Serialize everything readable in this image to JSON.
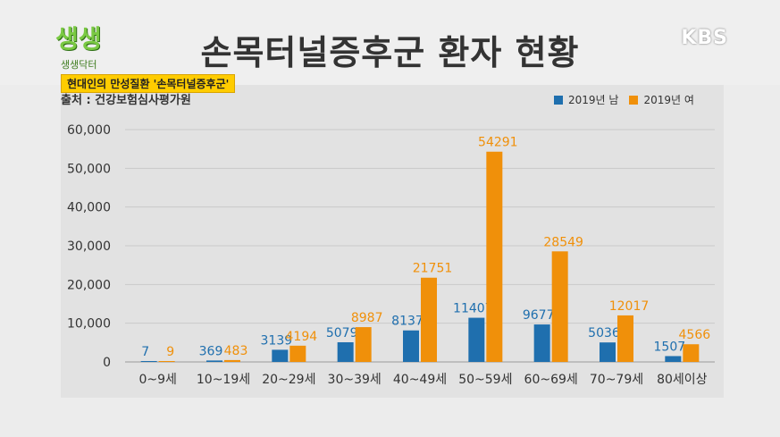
{
  "header": {
    "title": "손목터널증후군 환자 현황",
    "logo_main": "생생",
    "logo_sub": "생생닥터",
    "broadcaster": "KBS",
    "banner": "현대인의 만성질환 '손목터널증후군'",
    "source": "출처 : 건강보험심사평가원"
  },
  "colors": {
    "male": "#1f6fae",
    "female": "#f0900a",
    "axis_text": "#333333"
  },
  "chart_data": {
    "type": "bar",
    "categories": [
      "0~9세",
      "10~19세",
      "20~29세",
      "30~39세",
      "40~49세",
      "50~59세",
      "60~69세",
      "70~79세",
      "80세이상"
    ],
    "series": [
      {
        "name": "2019년 남",
        "values": [
          7,
          369,
          3139,
          5079,
          8137,
          11407,
          9677,
          5036,
          1507
        ]
      },
      {
        "name": "2019년 여",
        "values": [
          9,
          483,
          4194,
          8987,
          21751,
          54291,
          28549,
          12017,
          4566
        ]
      }
    ],
    "ylim": [
      0,
      60000
    ],
    "yticks": [
      "0",
      "10,000",
      "20,000",
      "30,000",
      "40,000",
      "50,000",
      "60,000"
    ],
    "ytick_values": [
      0,
      10000,
      20000,
      30000,
      40000,
      50000,
      60000
    ],
    "grid": true,
    "legend": "top-right"
  }
}
